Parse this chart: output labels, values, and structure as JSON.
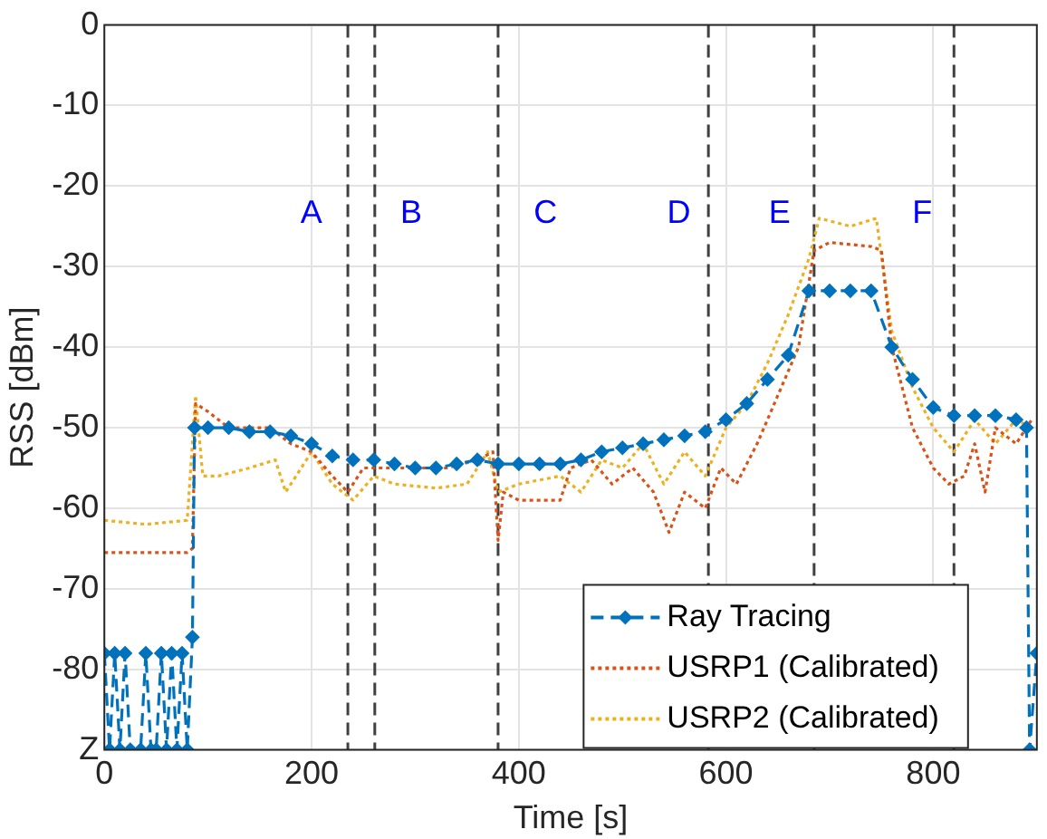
{
  "chart_data": {
    "type": "line",
    "xlabel": "Time [s]",
    "ylabel": "RSS [dBm]",
    "xlim": [
      0,
      900
    ],
    "xticks": [
      0,
      200,
      400,
      600,
      800
    ],
    "ylim": [
      -90,
      0
    ],
    "yticks": [
      0,
      -10,
      -20,
      -30,
      -40,
      -50,
      -60,
      -70,
      -80,
      {
        "value": -90,
        "label": "Z"
      }
    ],
    "grid": true,
    "legend": "bottom right",
    "series": [
      {
        "name": "Ray Tracing",
        "color": "#0072bd",
        "marker": "diamond",
        "line_style": "dashed",
        "x": [
          0,
          5,
          10,
          15,
          20,
          25,
          35,
          40,
          45,
          50,
          55,
          60,
          65,
          70,
          75,
          80,
          85,
          87,
          100,
          120,
          140,
          160,
          180,
          200,
          220,
          240,
          260,
          280,
          300,
          320,
          340,
          360,
          380,
          400,
          420,
          440,
          460,
          480,
          500,
          520,
          540,
          560,
          580,
          600,
          620,
          640,
          660,
          680,
          700,
          720,
          740,
          760,
          780,
          800,
          820,
          840,
          860,
          880,
          890,
          893,
          900
        ],
        "values": [
          -78,
          -90,
          -78,
          -90,
          -78,
          -90,
          -90,
          -78,
          -90,
          -90,
          -78,
          -90,
          -78,
          -90,
          -78,
          -90,
          -76,
          -50,
          -50,
          -50,
          -50.5,
          -50.5,
          -51,
          -52,
          -53.5,
          -54,
          -54,
          -54.5,
          -55,
          -55,
          -54.5,
          -54,
          -54.5,
          -54.5,
          -54.5,
          -54.5,
          -54,
          -53,
          -52.5,
          -52,
          -51.5,
          -51,
          -50.5,
          -49,
          -47,
          -44,
          -41,
          -33,
          -33,
          -33,
          -33,
          -40,
          -44,
          -47.5,
          -48.5,
          -48.5,
          -48.5,
          -49,
          -50,
          -90,
          -78
        ]
      },
      {
        "name": "USRP1 (Calibrated)",
        "color": "#d95319",
        "marker": "none",
        "line_style": "dotted",
        "x": [
          0,
          40,
          80,
          85,
          88,
          100,
          120,
          160,
          180,
          200,
          220,
          235,
          250,
          270,
          300,
          330,
          360,
          375,
          380,
          385,
          400,
          440,
          450,
          470,
          490,
          510,
          530,
          545,
          560,
          580,
          595,
          610,
          630,
          650,
          670,
          685,
          700,
          740,
          750,
          760,
          780,
          800,
          815,
          830,
          840,
          850,
          860,
          880,
          895
        ],
        "values": [
          -65.5,
          -65.5,
          -65.5,
          -65,
          -47,
          -48,
          -50,
          -50,
          -52,
          -53,
          -56,
          -58,
          -55,
          -55,
          -55,
          -55,
          -54,
          -53,
          -64,
          -58,
          -59,
          -59,
          -55,
          -54,
          -57,
          -55,
          -58,
          -63,
          -58,
          -60,
          -55,
          -57,
          -52,
          -46,
          -40,
          -28,
          -27,
          -27.5,
          -28,
          -40,
          -50,
          -55,
          -57,
          -56,
          -52,
          -58,
          -50,
          -52,
          -49
        ]
      },
      {
        "name": "USRP2 (Calibrated)",
        "color": "#edb120",
        "marker": "none",
        "line_style": "dotted",
        "x": [
          0,
          40,
          80,
          88,
          95,
          110,
          140,
          165,
          175,
          190,
          200,
          220,
          240,
          260,
          280,
          320,
          350,
          370,
          380,
          400,
          440,
          460,
          480,
          500,
          520,
          540,
          560,
          580,
          600,
          620,
          640,
          660,
          680,
          690,
          720,
          745,
          760,
          780,
          800,
          820,
          840,
          860,
          880,
          895
        ],
        "values": [
          -61.5,
          -62,
          -61.5,
          -46,
          -56,
          -56,
          -55,
          -54,
          -58,
          -55,
          -53,
          -57,
          -59,
          -56,
          -57,
          -57.5,
          -57,
          -53,
          -58,
          -57,
          -56,
          -58,
          -54,
          -55,
          -52,
          -57,
          -53,
          -56,
          -50,
          -47,
          -42,
          -36,
          -29,
          -24,
          -25,
          -24,
          -38,
          -45,
          -50,
          -53,
          -49,
          -52,
          -49,
          -50
        ]
      }
    ],
    "ref_lines": [
      {
        "axis": "x",
        "value": 235,
        "color": "#404040",
        "line_style": "dashed"
      },
      {
        "axis": "x",
        "value": 261,
        "color": "#404040",
        "line_style": "dashed"
      },
      {
        "axis": "x",
        "value": 380,
        "color": "#404040",
        "line_style": "dashed"
      },
      {
        "axis": "x",
        "value": 583,
        "color": "#404040",
        "line_style": "dashed"
      },
      {
        "axis": "x",
        "value": 685,
        "color": "#404040",
        "line_style": "dashed"
      },
      {
        "axis": "x",
        "value": 820,
        "color": "#404040",
        "line_style": "dashed"
      }
    ],
    "annotations": [
      "A",
      "B",
      "C",
      "D",
      "E",
      "F"
    ]
  }
}
